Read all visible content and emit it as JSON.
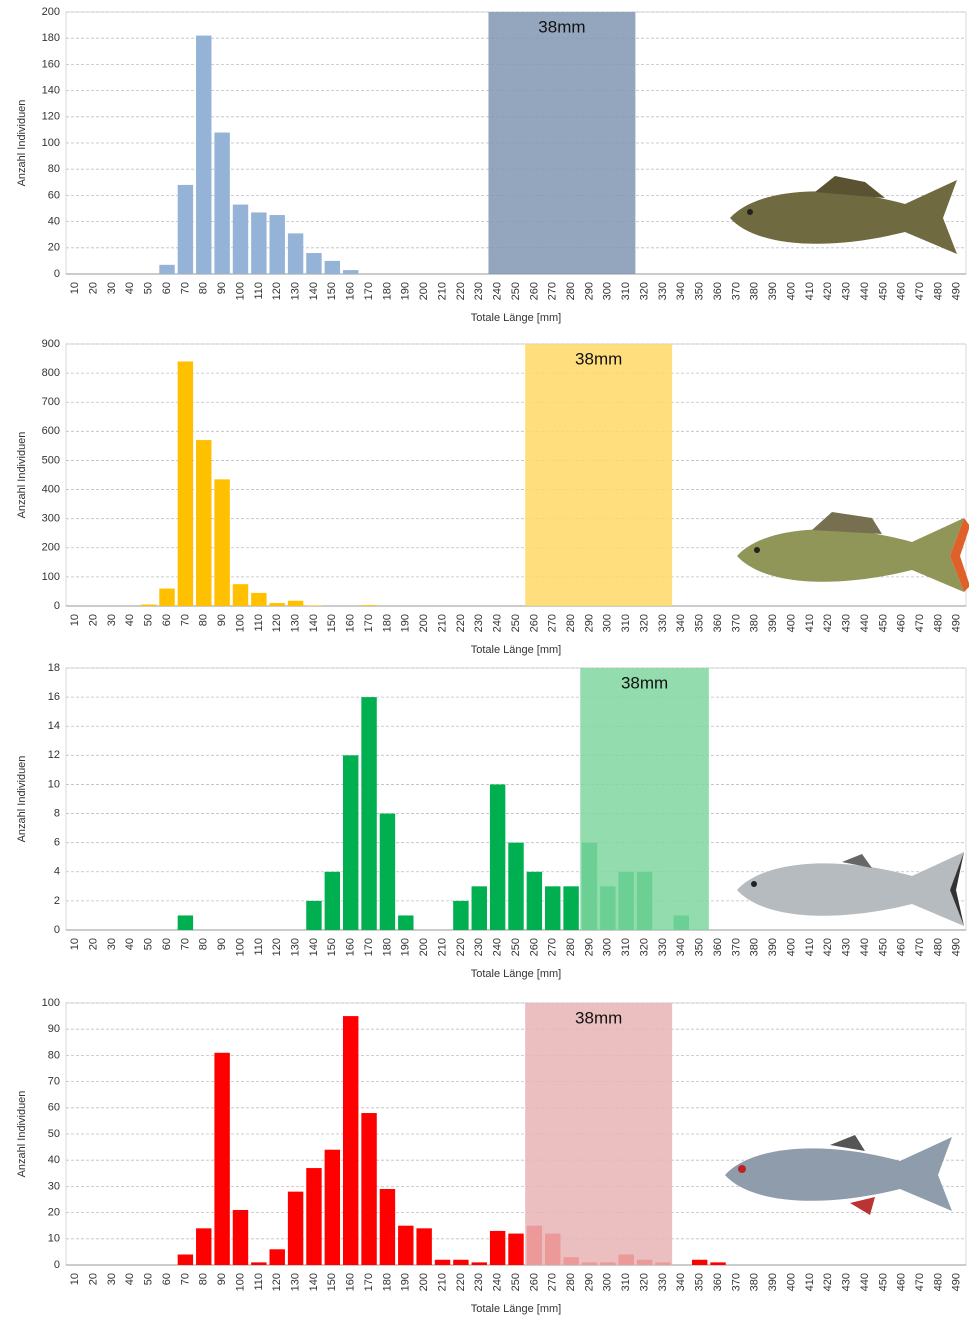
{
  "chart_data": [
    {
      "type": "bar",
      "color": "#95b3d7",
      "categories": [
        10,
        20,
        30,
        40,
        50,
        60,
        70,
        80,
        90,
        100,
        110,
        120,
        130,
        140,
        150,
        160,
        170,
        180,
        190,
        200,
        210,
        220,
        230,
        240,
        250,
        260,
        270,
        280,
        290,
        300,
        310,
        320,
        330,
        340,
        350,
        360,
        370,
        380,
        390,
        400,
        410,
        420,
        430,
        440,
        450,
        460,
        470,
        480,
        490
      ],
      "values": [
        0,
        0,
        0,
        0,
        0,
        7,
        68,
        182,
        108,
        53,
        47,
        45,
        31,
        16,
        10,
        3,
        0,
        0,
        0,
        0,
        0,
        0,
        0,
        0,
        0,
        0,
        0,
        0,
        0,
        0,
        0,
        0,
        0,
        0,
        0,
        0,
        0,
        0,
        0,
        0,
        0,
        0,
        0,
        0,
        0,
        0,
        0,
        0,
        0
      ],
      "ylim": [
        0,
        200
      ],
      "yticks": [
        0,
        20,
        40,
        60,
        80,
        100,
        120,
        140,
        160,
        180,
        200
      ],
      "grid": true,
      "xlabel": "Totale Länge [mm]",
      "ylabel": "Anzahl Individuen",
      "highlight": {
        "from": 240,
        "to": 310,
        "label": "38mm",
        "color": "#8097b3"
      }
    },
    {
      "type": "bar",
      "color": "#ffc000",
      "categories": [
        10,
        20,
        30,
        40,
        50,
        60,
        70,
        80,
        90,
        100,
        110,
        120,
        130,
        140,
        150,
        160,
        170,
        180,
        190,
        200,
        210,
        220,
        230,
        240,
        250,
        260,
        270,
        280,
        290,
        300,
        310,
        320,
        330,
        340,
        350,
        360,
        370,
        380,
        390,
        400,
        410,
        420,
        430,
        440,
        450,
        460,
        470,
        480,
        490
      ],
      "values": [
        0,
        0,
        0,
        0,
        5,
        60,
        840,
        570,
        435,
        75,
        45,
        10,
        18,
        2,
        0,
        0,
        3,
        0,
        0,
        0,
        0,
        0,
        0,
        0,
        0,
        0,
        0,
        0,
        0,
        0,
        0,
        0,
        0,
        0,
        0,
        0,
        0,
        0,
        0,
        0,
        0,
        0,
        0,
        0,
        0,
        0,
        0,
        0,
        0
      ],
      "ylim": [
        0,
        900
      ],
      "yticks": [
        0,
        100,
        200,
        300,
        400,
        500,
        600,
        700,
        800,
        900
      ],
      "grid": true,
      "xlabel": "Totale Länge [mm]",
      "ylabel": "Anzahl Individuen",
      "highlight": {
        "from": 260,
        "to": 330,
        "label": "38mm",
        "color": "#ffd966"
      }
    },
    {
      "type": "bar",
      "color": "#00b050",
      "categories": [
        10,
        20,
        30,
        40,
        50,
        60,
        70,
        80,
        90,
        100,
        110,
        120,
        130,
        140,
        150,
        160,
        170,
        180,
        190,
        200,
        210,
        220,
        230,
        240,
        250,
        260,
        270,
        280,
        290,
        300,
        310,
        320,
        330,
        340,
        350,
        360,
        370,
        380,
        390,
        400,
        410,
        420,
        430,
        440,
        450,
        460,
        470,
        480,
        490
      ],
      "values": [
        0,
        0,
        0,
        0,
        0,
        0,
        1,
        0,
        0,
        0,
        0,
        0,
        0,
        2,
        4,
        12,
        16,
        8,
        1,
        0,
        0,
        2,
        3,
        10,
        6,
        4,
        3,
        3,
        6,
        3,
        4,
        4,
        0,
        1,
        0,
        0,
        0,
        0,
        0,
        0,
        0,
        0,
        0,
        0,
        0,
        0,
        0,
        0,
        0
      ],
      "ylim": [
        0,
        18
      ],
      "yticks": [
        0,
        2,
        4,
        6,
        8,
        10,
        12,
        14,
        16,
        18
      ],
      "grid": true,
      "xlabel": "Totale Länge [mm]",
      "ylabel": "Anzahl Individuen",
      "highlight": {
        "from": 290,
        "to": 350,
        "label": "38mm",
        "color": "#7fd6a0"
      }
    },
    {
      "type": "bar",
      "color": "#ff0000",
      "categories": [
        10,
        20,
        30,
        40,
        50,
        60,
        70,
        80,
        90,
        100,
        110,
        120,
        130,
        140,
        150,
        160,
        170,
        180,
        190,
        200,
        210,
        220,
        230,
        240,
        250,
        260,
        270,
        280,
        290,
        300,
        310,
        320,
        330,
        340,
        350,
        360,
        370,
        380,
        390,
        400,
        410,
        420,
        430,
        440,
        450,
        460,
        470,
        480,
        490
      ],
      "values": [
        0,
        0,
        0,
        0,
        0,
        0,
        4,
        14,
        81,
        21,
        1,
        6,
        28,
        37,
        44,
        95,
        58,
        29,
        15,
        14,
        2,
        2,
        1,
        13,
        12,
        15,
        12,
        3,
        1,
        1,
        4,
        2,
        1,
        0,
        2,
        1,
        0,
        0,
        0,
        0,
        0,
        0,
        0,
        0,
        0,
        0,
        0,
        0,
        0
      ],
      "ylim": [
        0,
        100
      ],
      "yticks": [
        0,
        10,
        20,
        30,
        40,
        50,
        60,
        70,
        80,
        90,
        100
      ],
      "grid": true,
      "xlabel": "Totale Länge [mm]",
      "ylabel": "Anzahl Individuen",
      "highlight": {
        "from": 260,
        "to": 330,
        "label": "38mm",
        "color": "#e8b4b4"
      }
    }
  ]
}
